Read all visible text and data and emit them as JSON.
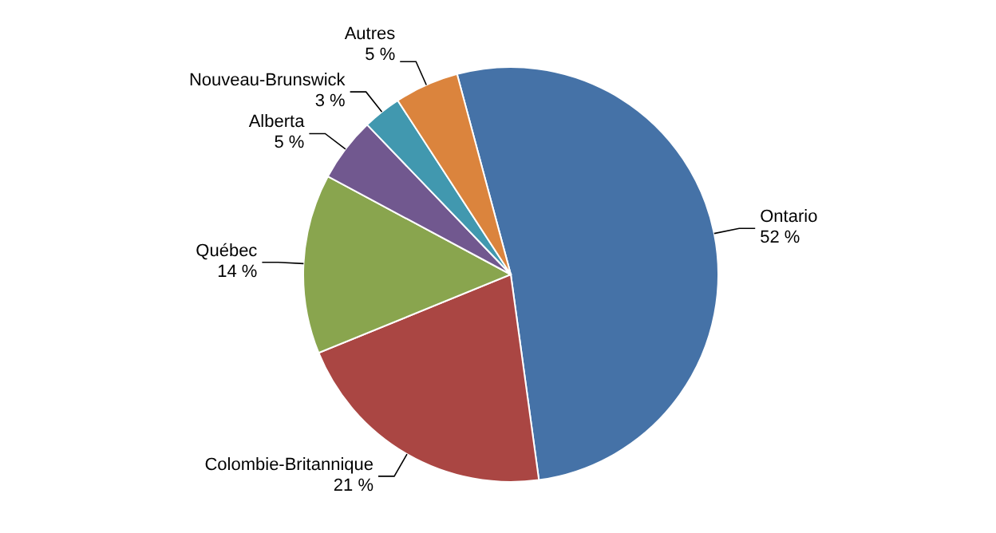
{
  "chart_data": {
    "type": "pie",
    "categories": [
      "Ontario",
      "Colombie-Britannique",
      "Québec",
      "Alberta",
      "Nouveau-Brunswick",
      "Autres"
    ],
    "values": [
      52,
      21,
      14,
      5,
      3,
      5
    ],
    "value_labels": [
      "52 %",
      "21 %",
      "14 %",
      "5 %",
      "3 %",
      "5 %"
    ],
    "colors": [
      "#4572a7",
      "#aa4643",
      "#89a54e",
      "#71588f",
      "#4198af",
      "#db843d"
    ],
    "legend": false
  }
}
